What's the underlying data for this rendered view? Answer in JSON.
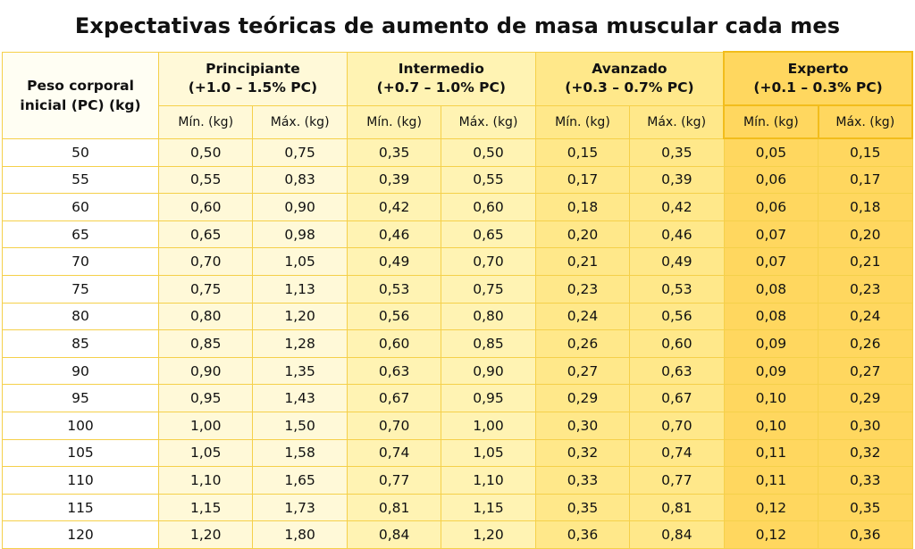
{
  "title": "Expectativas teóricas de aumento de masa muscular cada mes",
  "header": {
    "peso_line1": "Peso corporal",
    "peso_line2": "inicial (PC) (kg)",
    "levels": [
      {
        "name": "Principiante",
        "range": "(+1.0 – 1.5% PC)",
        "color": "#fff9d8"
      },
      {
        "name": "Intermedio",
        "range": "(+0.7 – 1.0% PC)",
        "color": "#fff3b3"
      },
      {
        "name": "Avanzado",
        "range": "(+0.3 – 0.7% PC)",
        "color": "#ffe88a"
      },
      {
        "name": "Experto",
        "range": "(+0.1 – 0.3% PC)",
        "color": "#ffd75f"
      }
    ],
    "min_label": "Mín. (kg)",
    "max_label": "Máx. (kg)"
  },
  "rows": [
    [
      "50",
      "0,50",
      "0,75",
      "0,35",
      "0,50",
      "0,15",
      "0,35",
      "0,05",
      "0,15"
    ],
    [
      "55",
      "0,55",
      "0,83",
      "0,39",
      "0,55",
      "0,17",
      "0,39",
      "0,06",
      "0,17"
    ],
    [
      "60",
      "0,60",
      "0,90",
      "0,42",
      "0,60",
      "0,18",
      "0,42",
      "0,06",
      "0,18"
    ],
    [
      "65",
      "0,65",
      "0,98",
      "0,46",
      "0,65",
      "0,20",
      "0,46",
      "0,07",
      "0,20"
    ],
    [
      "70",
      "0,70",
      "1,05",
      "0,49",
      "0,70",
      "0,21",
      "0,49",
      "0,07",
      "0,21"
    ],
    [
      "75",
      "0,75",
      "1,13",
      "0,53",
      "0,75",
      "0,23",
      "0,53",
      "0,08",
      "0,23"
    ],
    [
      "80",
      "0,80",
      "1,20",
      "0,56",
      "0,80",
      "0,24",
      "0,56",
      "0,08",
      "0,24"
    ],
    [
      "85",
      "0,85",
      "1,28",
      "0,60",
      "0,85",
      "0,26",
      "0,60",
      "0,09",
      "0,26"
    ],
    [
      "90",
      "0,90",
      "1,35",
      "0,63",
      "0,90",
      "0,27",
      "0,63",
      "0,09",
      "0,27"
    ],
    [
      "95",
      "0,95",
      "1,43",
      "0,67",
      "0,95",
      "0,29",
      "0,67",
      "0,10",
      "0,29"
    ],
    [
      "100",
      "1,00",
      "1,50",
      "0,70",
      "1,00",
      "0,30",
      "0,70",
      "0,10",
      "0,30"
    ],
    [
      "105",
      "1,05",
      "1,58",
      "0,74",
      "1,05",
      "0,32",
      "0,74",
      "0,11",
      "0,32"
    ],
    [
      "110",
      "1,10",
      "1,65",
      "0,77",
      "1,10",
      "0,33",
      "0,77",
      "0,11",
      "0,33"
    ],
    [
      "115",
      "1,15",
      "1,73",
      "0,81",
      "1,15",
      "0,35",
      "0,81",
      "0,12",
      "0,35"
    ],
    [
      "120",
      "1,20",
      "1,80",
      "0,84",
      "1,20",
      "0,36",
      "0,84",
      "0,12",
      "0,36"
    ]
  ]
}
